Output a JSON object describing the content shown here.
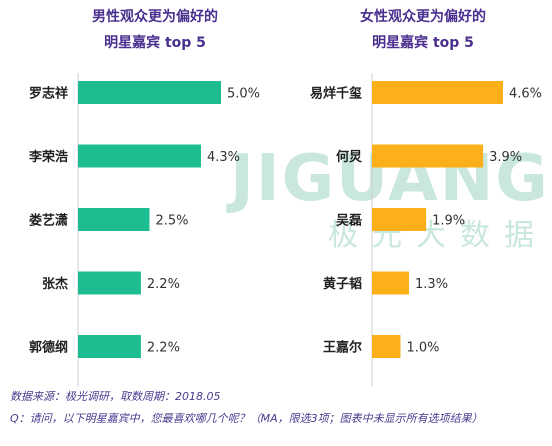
{
  "watermark": {
    "text": "JIGUANG",
    "subtext": "极光大数据",
    "color": "#c9e7dc"
  },
  "chart_data": [
    {
      "type": "bar",
      "orientation": "horizontal",
      "title_line1": "男性观众更为偏好的",
      "title_line2": "明星嘉宾 top 5",
      "categories": [
        "罗志祥",
        "李荣浩",
        "娄艺潇",
        "张杰",
        "郭德纲"
      ],
      "values": [
        5.0,
        4.3,
        2.5,
        2.2,
        2.2
      ],
      "value_labels": [
        "5.0%",
        "4.3%",
        "2.5%",
        "2.2%",
        "2.2%"
      ],
      "unit": "%",
      "color": "#1dbc91",
      "xlim": [
        0,
        5.0
      ]
    },
    {
      "type": "bar",
      "orientation": "horizontal",
      "title_line1": "女性观众更为偏好的",
      "title_line2": "明星嘉宾 top 5",
      "categories": [
        "易烊千玺",
        "何炅",
        "吴磊",
        "黄子韬",
        "王嘉尔"
      ],
      "values": [
        4.6,
        3.9,
        1.9,
        1.3,
        1.0
      ],
      "value_labels": [
        "4.6%",
        "3.9%",
        "1.9%",
        "1.3%",
        "1.0%"
      ],
      "unit": "%",
      "color": "#fbb01a",
      "xlim": [
        0,
        4.6
      ]
    }
  ],
  "footnotes": {
    "source": "数据来源：极光调研，取数周期：2018.05",
    "question": "Q：请问，以下明星嘉宾中，您最喜欢哪几个呢？（MA，限选3项；图表中未显示所有选项结果）"
  }
}
